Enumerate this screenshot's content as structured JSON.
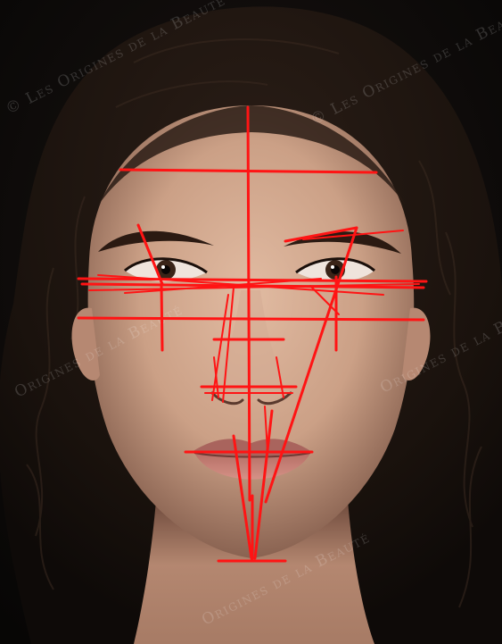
{
  "image": {
    "subject": "portrait-face-proportion-analysis",
    "background_color": "#0c0a09",
    "hair_color": "#1f1510",
    "skin_color": "#caa086",
    "guide_line_color": "#ff1414"
  },
  "watermark": {
    "text": "© Les Origines de la Beauté",
    "visible_fragments": [
      "© Les Origines de la Beauté",
      "Origines de la Beauté",
      "Origines de la Beauté"
    ]
  }
}
